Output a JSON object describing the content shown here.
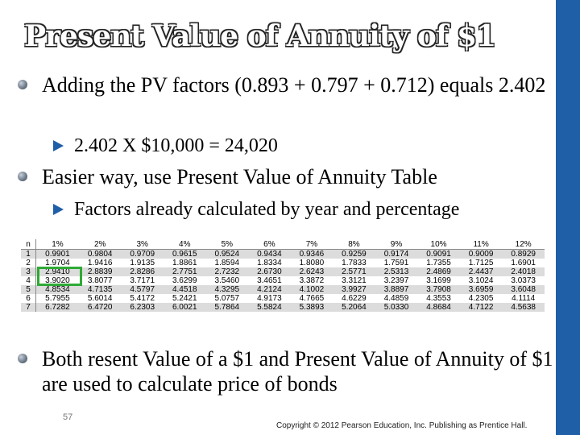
{
  "slide": {
    "title": "Present Value of Annuity of $1",
    "bullets": [
      {
        "text": "Adding the PV factors (0.893 + 0.797 + 0.712) equals 2.402",
        "sub": [
          "2.402 X $10,000 = 24,020"
        ]
      },
      {
        "text": "Easier way, use Present Value of Annuity Table",
        "sub": [
          "Factors already calculated by year and percentage"
        ]
      },
      {
        "text": "Both resent Value of a $1 and Present Value of Annuity of $1 are used to calculate price of bonds",
        "sub": []
      }
    ],
    "slide_number": "57",
    "copyright": "Copyright © 2012 Pearson Education, Inc. Publishing as Prentice Hall."
  },
  "table": {
    "headers": [
      "n",
      "1%",
      "2%",
      "3%",
      "4%",
      "5%",
      "6%",
      "7%",
      "8%",
      "9%",
      "10%",
      "11%",
      "12%"
    ],
    "rows": [
      [
        "1",
        "0.9901",
        "0.9804",
        "0.9709",
        "0.9615",
        "0.9524",
        "0.9434",
        "0.9346",
        "0.9259",
        "0.9174",
        "0.9091",
        "0.9009",
        "0.8929"
      ],
      [
        "2",
        "1.9704",
        "1.9416",
        "1.9135",
        "1.8861",
        "1.8594",
        "1.8334",
        "1.8080",
        "1.7833",
        "1.7591",
        "1.7355",
        "1.7125",
        "1.6901"
      ],
      [
        "3",
        "2.9410",
        "2.8839",
        "2.8286",
        "2.7751",
        "2.7232",
        "2.6730",
        "2.6243",
        "2.5771",
        "2.5313",
        "2.4869",
        "2.4437",
        "2.4018"
      ],
      [
        "4",
        "3.9020",
        "3.8077",
        "3.7171",
        "3.6299",
        "3.5460",
        "3.4651",
        "3.3872",
        "3.3121",
        "3.2397",
        "3.1699",
        "3.1024",
        "3.0373"
      ],
      [
        "5",
        "4.8534",
        "4.7135",
        "4.5797",
        "4.4518",
        "4.3295",
        "4.2124",
        "4.1002",
        "3.9927",
        "3.8897",
        "3.7908",
        "3.6959",
        "3.6048"
      ],
      [
        "6",
        "5.7955",
        "5.6014",
        "5.4172",
        "5.2421",
        "5.0757",
        "4.9173",
        "4.7665",
        "4.6229",
        "4.4859",
        "4.3553",
        "4.2305",
        "4.1114"
      ],
      [
        "7",
        "6.7282",
        "6.4720",
        "6.2303",
        "6.0021",
        "5.7864",
        "5.5824",
        "5.3893",
        "5.2064",
        "5.0330",
        "4.8684",
        "4.7122",
        "4.5638"
      ]
    ],
    "highlighted_cell": "2.9410"
  },
  "colors": {
    "accent_bar": "#1f5fa8",
    "highlight_box": "#2eaa35"
  }
}
